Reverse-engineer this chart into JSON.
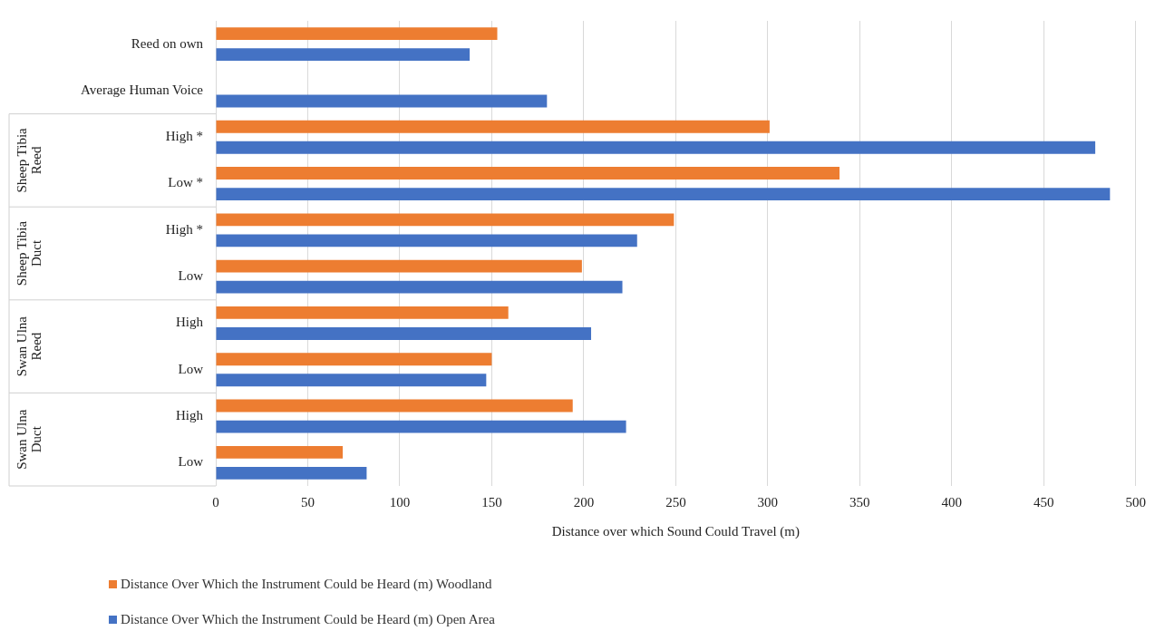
{
  "chart_data": {
    "type": "bar",
    "orientation": "horizontal",
    "xlabel": "Distance over which Sound Could Travel (m)",
    "categories": [
      "Reed on own",
      "Average Human Voice",
      "High *",
      "Low *",
      "High *",
      "Low",
      "High",
      "Low",
      "High",
      "Low"
    ],
    "series": [
      {
        "name": "Distance Over Which the Instrument Could be Heard (m) Woodland",
        "color": "#ed7d31",
        "values": [
          153,
          null,
          301,
          339,
          249,
          199,
          159,
          150,
          194,
          69
        ]
      },
      {
        "name": "Distance Over Which the Instrument Could be Heard (m) Open Area",
        "color": "#4472c4",
        "values": [
          138,
          180,
          478,
          486,
          229,
          221,
          204,
          147,
          223,
          82
        ]
      }
    ],
    "annotations": [
      "Sheep Tibia Reed",
      "Sheep Tibia Duct",
      "Swan Ulna Reed",
      "Swan Ulna Duct"
    ],
    "xlim": [
      0,
      500
    ],
    "xticks": [
      0,
      50,
      100,
      150,
      200,
      250,
      300,
      350,
      400,
      450,
      500
    ],
    "grid": "x",
    "legend": "bottom"
  }
}
